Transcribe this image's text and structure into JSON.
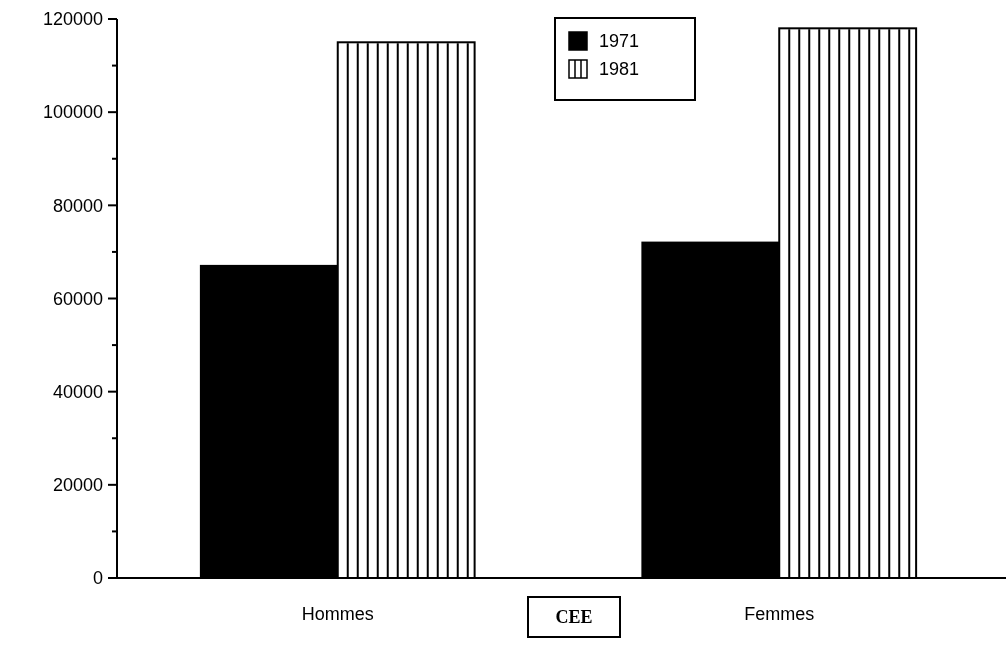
{
  "chart_data": {
    "type": "bar",
    "categories": [
      "Hommes",
      "Femmes"
    ],
    "series": [
      {
        "name": "1971",
        "color": "#000000",
        "values": [
          67000,
          72000
        ]
      },
      {
        "name": "1981",
        "color": "#ffffff",
        "values": [
          115000,
          118000
        ]
      }
    ],
    "ylim": [
      0,
      120000
    ],
    "yticks": [
      0,
      {
        "value": 10000,
        "label": null
      },
      20000,
      {
        "value": 30000,
        "label": null
      },
      40000,
      {
        "value": 50000,
        "label": null
      },
      60000,
      {
        "value": 70000,
        "label": null
      },
      80000,
      {
        "value": 90000,
        "label": null
      },
      100000,
      {
        "value": 110000,
        "label": null
      },
      120000
    ],
    "legend": "top",
    "grid": false,
    "annotations": [
      "CEE"
    ]
  }
}
